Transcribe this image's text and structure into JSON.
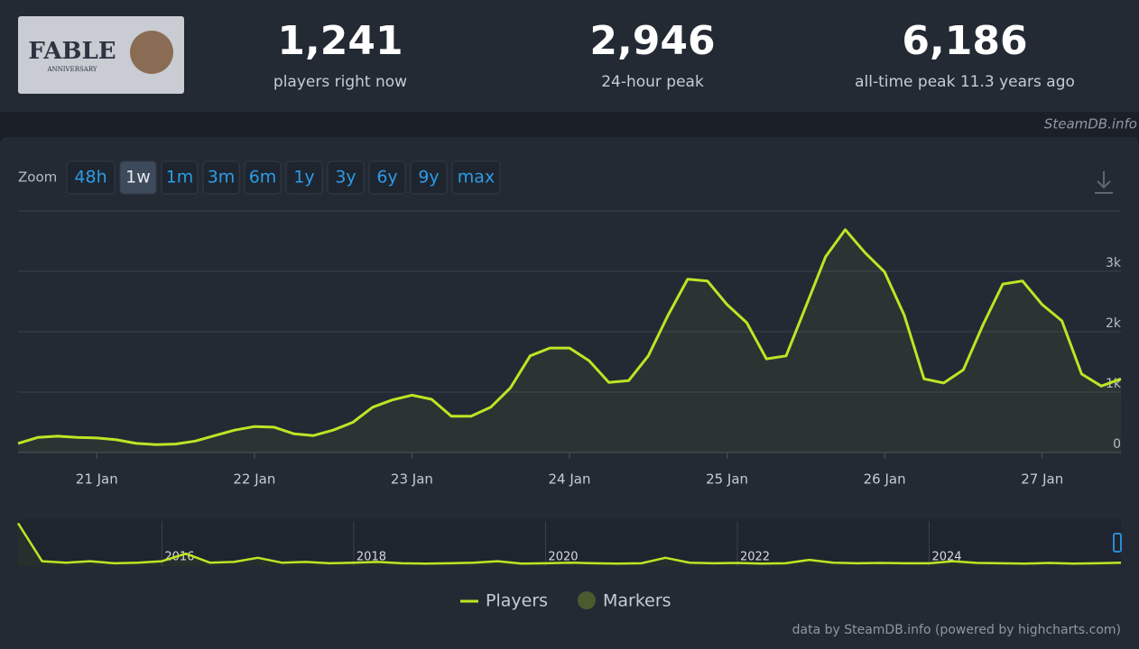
{
  "logo": {
    "title": "FABLE",
    "subtitle": "ANNIVERSARY"
  },
  "stats": [
    {
      "value": "1,241",
      "label": "players right now"
    },
    {
      "value": "2,946",
      "label": "24-hour peak"
    },
    {
      "value": "6,186",
      "label": "all-time peak 11.3 years ago"
    }
  ],
  "site": "SteamDB.info",
  "zoom": {
    "label": "Zoom",
    "options": [
      "48h",
      "1w",
      "1m",
      "3m",
      "6m",
      "1y",
      "3y",
      "6y",
      "9y",
      "max"
    ],
    "active": "1w"
  },
  "chart_data": [
    {
      "type": "line",
      "categories": [
        null,
        null,
        null,
        null,
        "21 Jan",
        null,
        null,
        null,
        null,
        null,
        null,
        null,
        "22 Jan",
        null,
        null,
        null,
        null,
        null,
        null,
        null,
        "23 Jan",
        null,
        null,
        null,
        null,
        null,
        null,
        null,
        "24 Jan",
        null,
        null,
        null,
        null,
        null,
        null,
        null,
        "25 Jan",
        null,
        null,
        null,
        null,
        null,
        null,
        null,
        "26 Jan",
        null,
        null,
        null,
        null,
        null,
        null,
        null,
        "27 Jan",
        null,
        null,
        null,
        null
      ],
      "series": [
        {
          "name": "Players",
          "color": "#bde524",
          "values": [
            150,
            250,
            270,
            250,
            240,
            210,
            150,
            130,
            140,
            190,
            280,
            370,
            430,
            420,
            310,
            280,
            370,
            500,
            750,
            870,
            950,
            880,
            600,
            600,
            750,
            1070,
            1600,
            1730,
            1730,
            1520,
            1160,
            1190,
            1600,
            2270,
            2870,
            2840,
            2450,
            2150,
            1550,
            1600,
            2420,
            3240,
            3690,
            3310,
            2990,
            2270,
            1220,
            1150,
            1370,
            2120,
            2790,
            2840,
            2450,
            2180,
            1300,
            1100,
            1220
          ]
        }
      ],
      "markers": {
        "name": "Markers",
        "color": "#4b5a2f"
      },
      "ylim": [
        0,
        4000
      ],
      "yticks": [
        0,
        {
          "value": 1000,
          "label": "1k"
        },
        {
          "value": 2000,
          "label": "2k"
        },
        {
          "value": 3000,
          "label": "3k"
        }
      ],
      "grid": true
    },
    {
      "type": "line",
      "categories": [
        null,
        null,
        null,
        null,
        null,
        null,
        "2016",
        null,
        null,
        null,
        null,
        null,
        null,
        null,
        "2018",
        null,
        null,
        null,
        null,
        null,
        null,
        null,
        "2020",
        null,
        null,
        null,
        null,
        null,
        null,
        null,
        "2022",
        null,
        null,
        null,
        null,
        null,
        null,
        null,
        "2024",
        null,
        null,
        null,
        null,
        null,
        null,
        null,
        null
      ],
      "series": [
        {
          "name": "Players",
          "color": "#bde524",
          "values": [
            6186,
            700,
            500,
            700,
            400,
            500,
            700,
            1800,
            500,
            600,
            1200,
            500,
            600,
            400,
            500,
            600,
            400,
            350,
            400,
            500,
            700,
            350,
            400,
            500,
            400,
            350,
            400,
            1200,
            500,
            400,
            450,
            350,
            400,
            900,
            500,
            400,
            450,
            400,
            400,
            700,
            450,
            400,
            350,
            450,
            350,
            400,
            500
          ]
        }
      ],
      "ylim": [
        0,
        6500
      ]
    }
  ],
  "credits": "data by SteamDB.info (powered by highcharts.com)"
}
